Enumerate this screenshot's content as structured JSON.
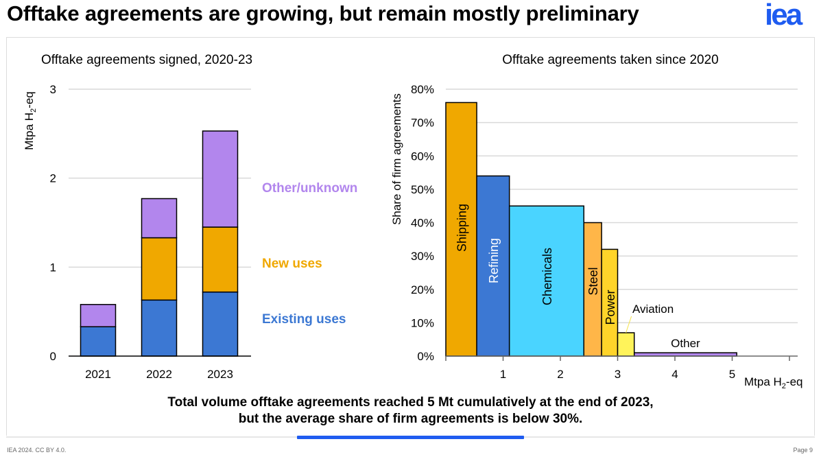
{
  "header": {
    "title": "Offtake agreements are growing, but remain mostly preliminary",
    "logo_text": "iea",
    "logo_color": "#1f5cf0"
  },
  "caption": {
    "line1": "Total volume offtake agreements reached 5 Mt cumulatively at the end of 2023,",
    "line2": "but the average share of firm agreements is below 30%."
  },
  "footer": {
    "left": "IEA 2024. CC BY 4.0.",
    "right": "Page 9"
  },
  "colors": {
    "existing": "#3c78d3",
    "new": "#f0a800",
    "other_unknown": "#b286ed",
    "accent": "#1f5cf0"
  },
  "chart_data": [
    {
      "type": "bar",
      "stacked": true,
      "title": "Offtake agreements signed, 2020-23",
      "xlabel": "",
      "ylabel": "Mtpa H2-eq",
      "ylabel_main": "Mtpa H",
      "ylabel_sub": "2",
      "ylabel_tail": "-eq",
      "ylim": [
        0,
        3
      ],
      "yticks": [
        "0",
        "1",
        "2",
        "3"
      ],
      "grid": true,
      "legend_placement": "right",
      "categories": [
        "2021",
        "2022",
        "2023"
      ],
      "series": [
        {
          "name": "Existing uses",
          "color": "#3c78d3",
          "values": [
            0.33,
            0.63,
            0.72
          ]
        },
        {
          "name": "New uses",
          "color": "#f0a800",
          "values": [
            0.0,
            0.7,
            0.73
          ]
        },
        {
          "name": "Other/unknown",
          "color": "#b286ed",
          "values": [
            0.25,
            0.44,
            1.08
          ]
        }
      ]
    },
    {
      "type": "bar",
      "variant": "variable-width (marimekko)",
      "title": "Offtake agreements taken since 2020",
      "xlabel": "Mtpa H2-eq",
      "xlabel_main": "Mtpa H",
      "xlabel_sub": "2",
      "xlabel_tail": "-eq",
      "ylabel": "Share of firm agreements",
      "xlim": [
        0,
        6
      ],
      "ylim": [
        0,
        80
      ],
      "xticks": [
        "1",
        "2",
        "3",
        "4",
        "5"
      ],
      "yticks": [
        "0%",
        "10%",
        "20%",
        "30%",
        "40%",
        "50%",
        "60%",
        "70%",
        "80%"
      ],
      "grid": true,
      "segments": [
        {
          "name": "Shipping",
          "x_start": 0.0,
          "x_end": 0.54,
          "share_pct": 76,
          "color": "#f0a800",
          "label_color": "#000000",
          "label_inside": true
        },
        {
          "name": "Refining",
          "x_start": 0.54,
          "x_end": 1.11,
          "share_pct": 54,
          "color": "#3c78d3",
          "label_color": "#ffffff",
          "label_inside": true
        },
        {
          "name": "Chemicals",
          "x_start": 1.11,
          "x_end": 2.41,
          "share_pct": 45,
          "color": "#4ad4ff",
          "label_color": "#000000",
          "label_inside": true
        },
        {
          "name": "Steel",
          "x_start": 2.41,
          "x_end": 2.72,
          "share_pct": 40,
          "color": "#ffb648",
          "label_color": "#000000",
          "label_inside": true
        },
        {
          "name": "Power",
          "x_start": 2.72,
          "x_end": 3.0,
          "share_pct": 32,
          "color": "#ffd42a",
          "label_color": "#000000",
          "label_inside": true
        },
        {
          "name": "Aviation",
          "x_start": 3.0,
          "x_end": 3.29,
          "share_pct": 7,
          "color": "#fff35a",
          "label_color": "#000000",
          "label_inside": false
        },
        {
          "name": "Other",
          "x_start": 3.29,
          "x_end": 5.08,
          "share_pct": 1,
          "color": "#b286ed",
          "label_color": "#000000",
          "label_inside": false
        }
      ]
    }
  ]
}
